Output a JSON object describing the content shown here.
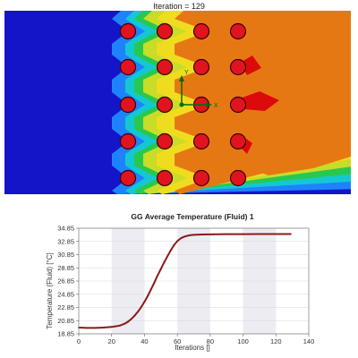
{
  "simulation": {
    "title": "Iteration = 129",
    "triad": {
      "x_label": "X",
      "y_label": "Y"
    },
    "colors": {
      "cold": "#1414c8",
      "cool": "#1e82ff",
      "mid_cool": "#14c8d2",
      "mid": "#28c850",
      "warm": "#c8dc28",
      "hot_yellow": "#f0dc1e",
      "hot": "#e67814",
      "hottest": "#dc0a0a",
      "tube_fill": "#e0141e",
      "tube_stroke": "#3a0000"
    }
  },
  "chart_data": {
    "type": "line",
    "title": "GG Average Temperature (Fluid) 1",
    "xlabel": "Iterations []",
    "ylabel": "Temperature (Fluid) [°C]",
    "xlim": [
      0,
      140
    ],
    "ylim": [
      18.85,
      34.85
    ],
    "x_ticks": [
      "0",
      "20",
      "40",
      "60",
      "80",
      "100",
      "120",
      "140"
    ],
    "y_ticks": [
      "18.85",
      "20.85",
      "22.85",
      "24.85",
      "26.85",
      "28.85",
      "30.85",
      "32.85",
      "34.85"
    ],
    "grid": true,
    "legend": "none",
    "series": [
      {
        "color": "#8b1a1a",
        "x": [
          0,
          5,
          10,
          15,
          20,
          25,
          28,
          30,
          32,
          34,
          36,
          38,
          40,
          42,
          44,
          46,
          48,
          50,
          52,
          54,
          56,
          58,
          60,
          62,
          64,
          66,
          68,
          70,
          75,
          80,
          90,
          100,
          110,
          120,
          129
        ],
        "y": [
          19.8,
          19.75,
          19.75,
          19.8,
          19.9,
          20.1,
          20.4,
          20.7,
          21.1,
          21.6,
          22.2,
          22.9,
          23.7,
          24.6,
          25.6,
          26.6,
          27.7,
          28.7,
          29.7,
          30.6,
          31.5,
          32.3,
          32.9,
          33.3,
          33.55,
          33.7,
          33.8,
          33.85,
          33.9,
          33.92,
          33.95,
          33.95,
          33.97,
          33.97,
          33.97
        ]
      }
    ]
  }
}
